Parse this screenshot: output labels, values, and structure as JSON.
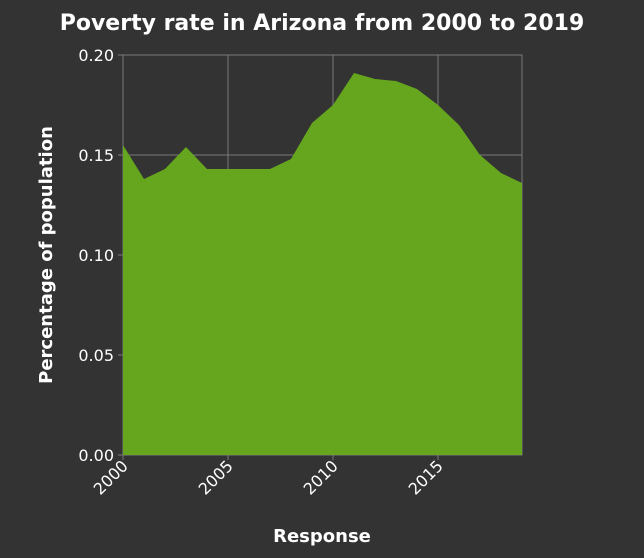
{
  "chart_data": {
    "type": "area",
    "title": "Poverty rate in Arizona from 2000 to 2019",
    "xlabel": "Response",
    "ylabel": "Percentage of population",
    "x": [
      2000,
      2001,
      2002,
      2003,
      2004,
      2005,
      2006,
      2007,
      2008,
      2009,
      2010,
      2011,
      2012,
      2013,
      2014,
      2015,
      2016,
      2017,
      2018,
      2019
    ],
    "values": [
      0.155,
      0.138,
      0.143,
      0.154,
      0.143,
      0.143,
      0.143,
      0.143,
      0.148,
      0.166,
      0.175,
      0.191,
      0.188,
      0.187,
      0.183,
      0.175,
      0.165,
      0.15,
      0.141,
      0.136
    ],
    "xlim": [
      2000,
      2019
    ],
    "ylim": [
      0,
      0.2
    ],
    "x_ticks": [
      2000,
      2005,
      2010,
      2015
    ],
    "x_tick_labels": [
      "2000",
      "2005",
      "2010",
      "2015"
    ],
    "y_ticks": [
      0,
      0.05,
      0.1,
      0.15,
      0.2
    ],
    "y_tick_labels": [
      "0.00",
      "0.05",
      "0.10",
      "0.15",
      "0.20"
    ],
    "grid": true,
    "colors": {
      "background": "#333333",
      "fill": "#66a61e",
      "grid": "#7a7a7a",
      "text": "#ffffff"
    }
  }
}
